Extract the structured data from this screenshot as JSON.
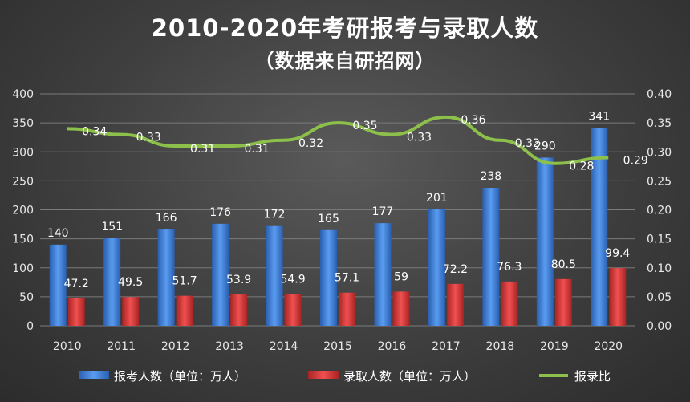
{
  "chart_data": {
    "type": "bar",
    "title": "2010-2020年考研报考与录取人数",
    "subtitle": "（数据来自研招网）",
    "categories": [
      "2010",
      "2011",
      "2012",
      "2013",
      "2014",
      "2015",
      "2016",
      "2017",
      "2018",
      "2019",
      "2020"
    ],
    "series": [
      {
        "name": "报考人数（单位：万人）",
        "type": "bar",
        "axis": "left",
        "color": "#3f7fd6",
        "values": [
          140,
          151,
          166,
          176,
          172,
          165,
          177,
          201,
          238,
          290,
          341
        ]
      },
      {
        "name": "录取人数（单位：万人）",
        "type": "bar",
        "axis": "left",
        "color": "#d83a3a",
        "values": [
          47.2,
          49.5,
          51.7,
          53.9,
          54.9,
          57.1,
          59,
          72.2,
          76.3,
          80.5,
          99.4
        ]
      },
      {
        "name": "报录比",
        "type": "line",
        "axis": "right",
        "color": "#8cc04a",
        "values": [
          0.34,
          0.33,
          0.31,
          0.31,
          0.32,
          0.35,
          0.33,
          0.36,
          0.32,
          0.28,
          0.29
        ]
      }
    ],
    "y_left": {
      "min": 0,
      "max": 400,
      "ticks": [
        0,
        50,
        100,
        150,
        200,
        250,
        300,
        350,
        400
      ]
    },
    "y_right": {
      "min": 0,
      "max": 0.4,
      "ticks": [
        "0.00",
        "0.05",
        "0.10",
        "0.15",
        "0.20",
        "0.25",
        "0.30",
        "0.35",
        "0.40"
      ]
    },
    "grid": true,
    "legend_position": "bottom"
  }
}
